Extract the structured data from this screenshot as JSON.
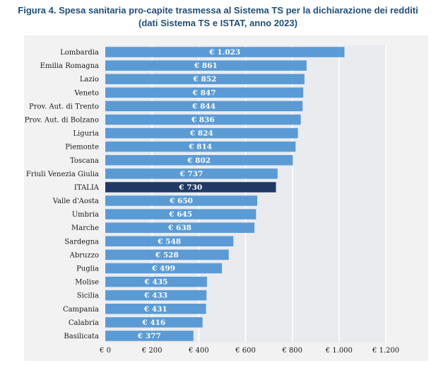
{
  "title": {
    "line1": "Figura 4. Spesa sanitaria pro-capite trasmessa al Sistema TS per la dichiarazione dei redditi",
    "line2": "(dati Sistema TS e ISTAT, anno 2023)"
  },
  "chart_data": {
    "type": "bar",
    "orientation": "horizontal",
    "title": "Figura 4. Spesa sanitaria pro-capite trasmessa al Sistema TS per la dichiarazione dei redditi (dati Sistema TS e ISTAT, anno 2023)",
    "categories": [
      "Lombardia",
      "Emilia Romagna",
      "Lazio",
      "Veneto",
      "Prov. Aut. di Trento",
      "Prov. Aut. di Bolzano",
      "Liguria",
      "Piemonte",
      "Toscana",
      "Friuli Venezia Giulia",
      "ITALIA",
      "Valle d'Aosta",
      "Umbria",
      "Marche",
      "Sardegna",
      "Abruzzo",
      "Puglia",
      "Molise",
      "Sicilia",
      "Campania",
      "Calabria",
      "Basilicata"
    ],
    "values": [
      1023,
      861,
      852,
      847,
      844,
      836,
      824,
      814,
      802,
      737,
      730,
      650,
      645,
      638,
      548,
      528,
      499,
      435,
      433,
      431,
      416,
      377
    ],
    "value_labels": [
      "€ 1.023",
      "€ 861",
      "€ 852",
      "€ 847",
      "€ 844",
      "€ 836",
      "€ 824",
      "€ 814",
      "€ 802",
      "€ 737",
      "€ 730",
      "€ 650",
      "€ 645",
      "€ 638",
      "€ 548",
      "€ 528",
      "€ 499",
      "€ 435",
      "€ 433",
      "€ 431",
      "€ 416",
      "€ 377"
    ],
    "highlight_category": "ITALIA",
    "xlim": [
      0,
      1200
    ],
    "xticks": [
      0,
      200,
      400,
      600,
      800,
      1000,
      1200
    ],
    "xtick_labels": [
      "€ 0",
      "€ 200",
      "€ 400",
      "€ 600",
      "€ 800",
      "€ 1.000",
      "€ 1.200"
    ],
    "grid": true,
    "colors": {
      "bar": "#5b9bd5",
      "highlight": "#1f3864",
      "title": "#1f4e79",
      "plot_bg": "#e9ebef",
      "grid": "#ffffff"
    }
  }
}
